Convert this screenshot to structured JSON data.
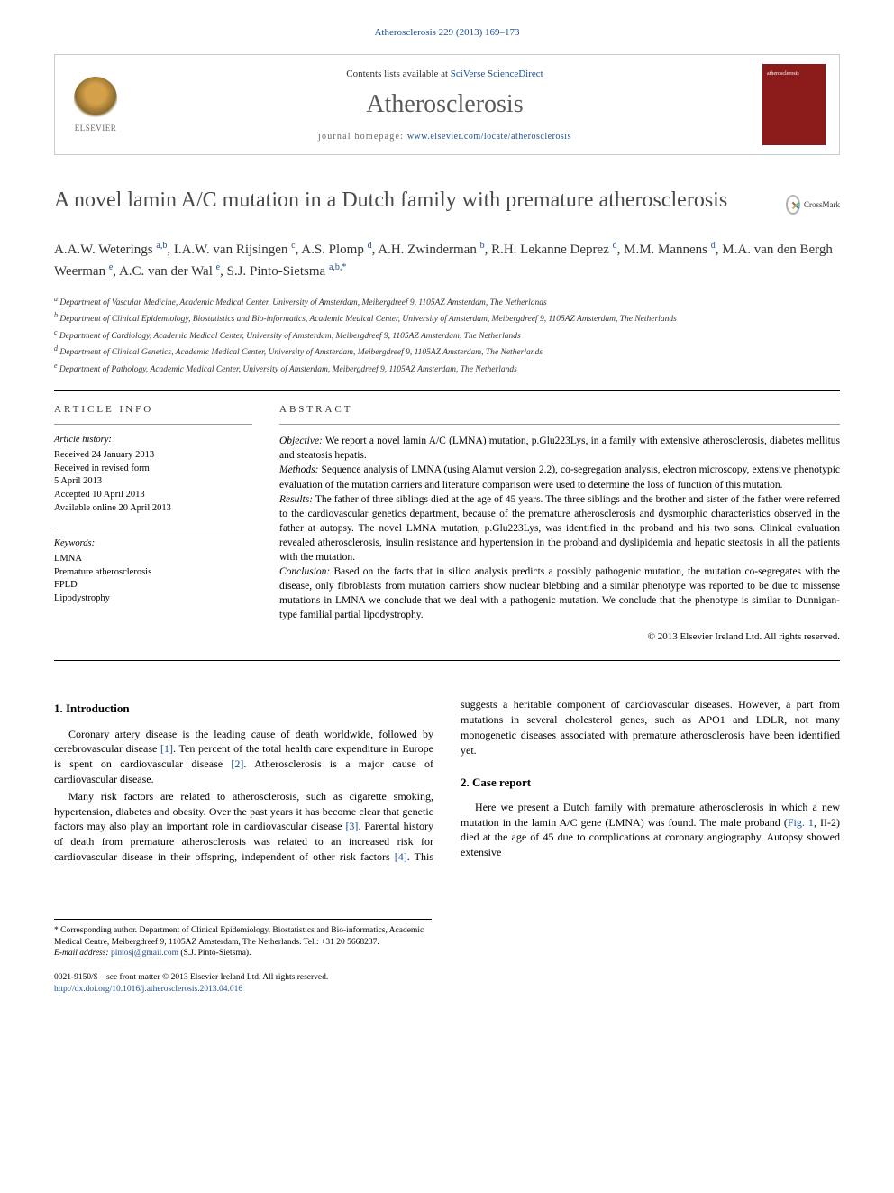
{
  "citation": "Atherosclerosis 229 (2013) 169–173",
  "publisher_box": {
    "contents_prefix": "Contents lists available at ",
    "contents_link": "SciVerse ScienceDirect",
    "journal": "Atherosclerosis",
    "homepage_prefix": "journal homepage: ",
    "homepage_url": "www.elsevier.com/locate/atherosclerosis",
    "elsevier_label": "ELSEVIER"
  },
  "title": "A novel lamin A/C mutation in a Dutch family with premature atherosclerosis",
  "crossmark_label": "CrossMark",
  "authors_html": "A.A.W. Weterings <sup>a,b</sup>, I.A.W. van Rijsingen <sup>c</sup>, A.S. Plomp <sup>d</sup>, A.H. Zwinderman <sup>b</sup>, R.H. Lekanne Deprez <sup>d</sup>, M.M. Mannens <sup>d</sup>, M.A. van den Bergh Weerman <sup>e</sup>, A.C. van der Wal <sup>e</sup>, S.J. Pinto-Sietsma <sup>a,b,*</sup>",
  "affiliations": [
    "a Department of Vascular Medicine, Academic Medical Center, University of Amsterdam, Meibergdreef 9, 1105AZ Amsterdam, The Netherlands",
    "b Department of Clinical Epidemiology, Biostatistics and Bio-informatics, Academic Medical Center, University of Amsterdam, Meibergdreef 9, 1105AZ Amsterdam, The Netherlands",
    "c Department of Cardiology, Academic Medical Center, University of Amsterdam, Meibergdreef 9, 1105AZ Amsterdam, The Netherlands",
    "d Department of Clinical Genetics, Academic Medical Center, University of Amsterdam, Meibergdreef 9, 1105AZ Amsterdam, The Netherlands",
    "e Department of Pathology, Academic Medical Center, University of Amsterdam, Meibergdreef 9, 1105AZ Amsterdam, The Netherlands"
  ],
  "article_info": {
    "heading": "ARTICLE INFO",
    "history_title": "Article history:",
    "history": [
      "Received 24 January 2013",
      "Received in revised form",
      "5 April 2013",
      "Accepted 10 April 2013",
      "Available online 20 April 2013"
    ],
    "keywords_title": "Keywords:",
    "keywords": [
      "LMNA",
      "Premature atherosclerosis",
      "FPLD",
      "Lipodystrophy"
    ]
  },
  "abstract": {
    "heading": "ABSTRACT",
    "sections": [
      {
        "label": "Objective:",
        "text": " We report a novel lamin A/C (LMNA) mutation, p.Glu223Lys, in a family with extensive atherosclerosis, diabetes mellitus and steatosis hepatis."
      },
      {
        "label": "Methods:",
        "text": " Sequence analysis of LMNA (using Alamut version 2.2), co-segregation analysis, electron microscopy, extensive phenotypic evaluation of the mutation carriers and literature comparison were used to determine the loss of function of this mutation."
      },
      {
        "label": "Results:",
        "text": " The father of three siblings died at the age of 45 years. The three siblings and the brother and sister of the father were referred to the cardiovascular genetics department, because of the premature atherosclerosis and dysmorphic characteristics observed in the father at autopsy. The novel LMNA mutation, p.Glu223Lys, was identified in the proband and his two sons. Clinical evaluation revealed atherosclerosis, insulin resistance and hypertension in the proband and dyslipidemia and hepatic steatosis in all the patients with the mutation."
      },
      {
        "label": "Conclusion:",
        "text": " Based on the facts that in silico analysis predicts a possibly pathogenic mutation, the mutation co-segregates with the disease, only fibroblasts from mutation carriers show nuclear blebbing and a similar phenotype was reported to be due to missense mutations in LMNA we conclude that we deal with a pathogenic mutation. We conclude that the phenotype is similar to Dunnigan-type familial partial lipodystrophy."
      }
    ],
    "copyright": "© 2013 Elsevier Ireland Ltd. All rights reserved."
  },
  "body": {
    "section1_title": "1. Introduction",
    "section1_p1_a": "Coronary artery disease is the leading cause of death worldwide, followed by cerebrovascular disease ",
    "section1_p1_ref1": "[1]",
    "section1_p1_b": ". Ten percent of the total health care expenditure in Europe is spent on cardiovascular disease ",
    "section1_p1_ref2": "[2]",
    "section1_p1_c": ". Atherosclerosis is a major cause of cardiovascular disease.",
    "section1_p2_a": "Many risk factors are related to atherosclerosis, such as cigarette smoking, hypertension, diabetes and obesity. Over the past years it has become clear that genetic factors may also play an important role in cardiovascular disease ",
    "section1_p2_ref3": "[3]",
    "section1_p2_b": ". Parental history of death from premature atherosclerosis was related to an increased risk for cardiovascular disease in their offspring, independent of other risk factors ",
    "section1_p2_ref4": "[4]",
    "section1_p2_c": ". This suggests a heritable component of cardiovascular diseases. However, a part from mutations in several cholesterol genes, such as APO1 and LDLR, not many monogenetic diseases associated with premature atherosclerosis have been identified yet.",
    "section2_title": "2. Case report",
    "section2_p1_a": "Here we present a Dutch family with premature atherosclerosis in which a new mutation in the lamin A/C gene (LMNA) was found. The male proband (",
    "section2_p1_fig": "Fig. 1",
    "section2_p1_b": ", II-2) died at the age of 45 due to complications at coronary angiography. Autopsy showed extensive"
  },
  "footnotes": {
    "corr": "* Corresponding author. Department of Clinical Epidemiology, Biostatistics and Bio-informatics, Academic Medical Centre, Meibergdreef 9, 1105AZ Amsterdam, The Netherlands. Tel.: +31 20 5668237.",
    "email_label": "E-mail address: ",
    "email": "pintosj@gmail.com",
    "email_suffix": " (S.J. Pinto-Sietsma)."
  },
  "footer": {
    "issn": "0021-9150/$ – see front matter © 2013 Elsevier Ireland Ltd. All rights reserved.",
    "doi": "http://dx.doi.org/10.1016/j.atherosclerosis.2013.04.016"
  },
  "colors": {
    "link": "#1a4d8f",
    "text": "#000000",
    "heading_gray": "#4a4a4a",
    "cover_bg": "#8b1a1a"
  }
}
